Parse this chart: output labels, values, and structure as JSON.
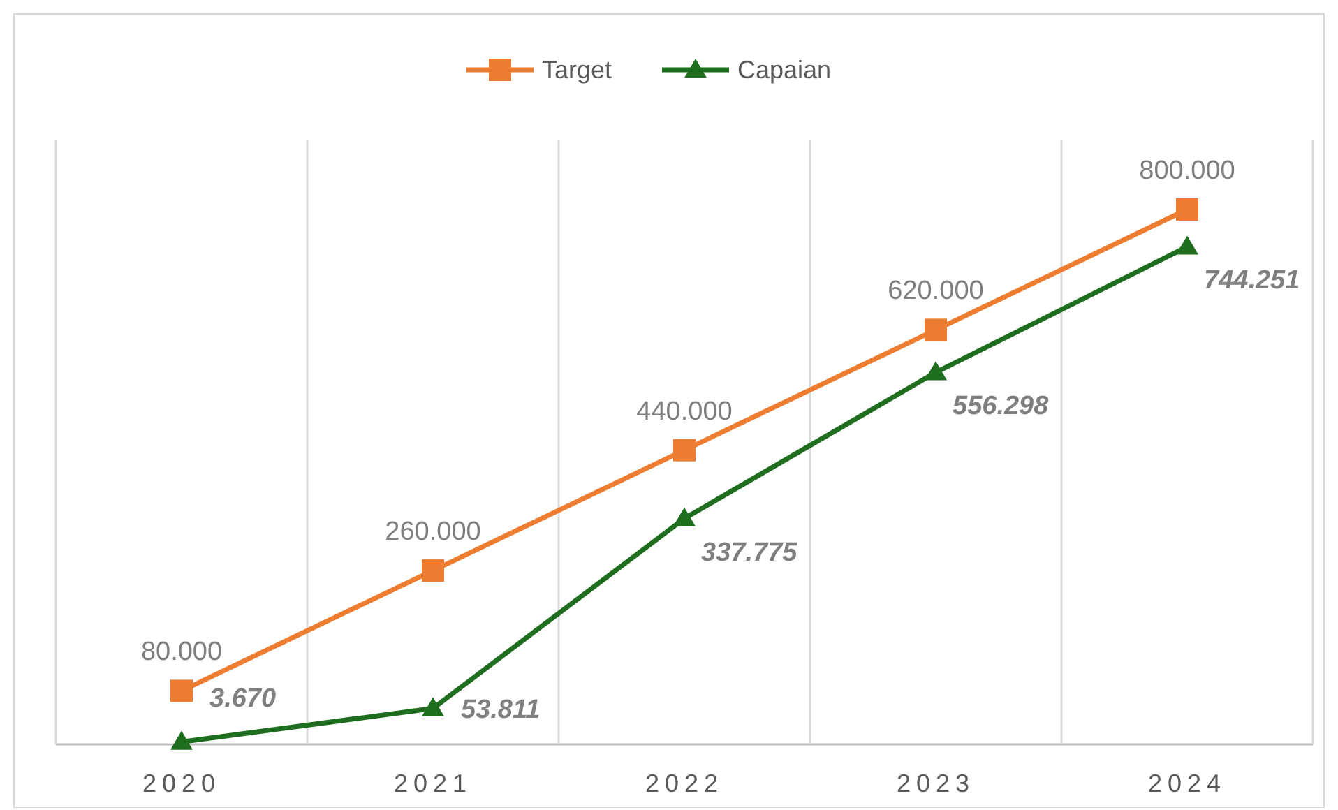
{
  "chart_data": {
    "type": "line",
    "categories": [
      "2020",
      "2021",
      "2022",
      "2023",
      "2024"
    ],
    "series": [
      {
        "name": "Target",
        "color": "#ed7d31",
        "marker": "square",
        "values": [
          80000,
          260000,
          440000,
          620000,
          800000
        ],
        "value_labels": [
          "80.000",
          "260.000",
          "440.000",
          "620.000",
          "800.000"
        ]
      },
      {
        "name": "Capaian",
        "color": "#1f6e1f",
        "marker": "triangle",
        "values": [
          3670,
          53811,
          337775,
          556298,
          744251
        ],
        "value_labels": [
          "3.670",
          "53.811",
          "337.775",
          "556.298",
          "744.251"
        ]
      }
    ],
    "grid": "x",
    "legend": "top",
    "line_style": "solid"
  }
}
